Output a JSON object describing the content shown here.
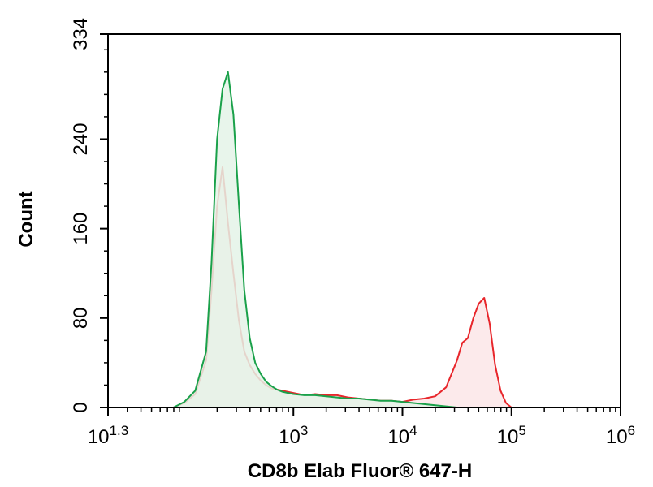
{
  "chart_data": {
    "type": "histogram",
    "xlabel": "CD8b Elab Fluor® 647-H",
    "ylabel": "Count",
    "xscale": "log",
    "xlim": [
      1.3,
      6
    ],
    "ylim": [
      0,
      334
    ],
    "x_ticks": [
      {
        "value": 1.3,
        "base": "10",
        "exp": "1.3"
      },
      {
        "value": 3,
        "base": "10",
        "exp": "3"
      },
      {
        "value": 4,
        "base": "10",
        "exp": "4"
      },
      {
        "value": 5,
        "base": "10",
        "exp": "5"
      },
      {
        "value": 6,
        "base": "10",
        "exp": "6"
      }
    ],
    "y_ticks": [
      0,
      80,
      160,
      240,
      334
    ],
    "grid": false,
    "series": [
      {
        "color": "#e8262b",
        "fill": "#fbe6e8",
        "log10_x": [
          1.9,
          2.0,
          2.1,
          2.2,
          2.25,
          2.3,
          2.35,
          2.4,
          2.45,
          2.5,
          2.55,
          2.6,
          2.65,
          2.7,
          2.75,
          2.8,
          2.85,
          2.9,
          2.95,
          3.0,
          3.1,
          3.2,
          3.3,
          3.4,
          3.5,
          3.6,
          3.7,
          3.8,
          3.9,
          4.0,
          4.1,
          4.2,
          4.3,
          4.4,
          4.5,
          4.55,
          4.6,
          4.65,
          4.7,
          4.75,
          4.8,
          4.85,
          4.9,
          4.95,
          5.0,
          5.05,
          5.1,
          5.15,
          5.2
        ],
        "counts": [
          0,
          4,
          12,
          42,
          105,
          180,
          215,
          165,
          120,
          78,
          50,
          38,
          30,
          24,
          20,
          17,
          16,
          15,
          14,
          13,
          11,
          12,
          11,
          11,
          9,
          8,
          7,
          6,
          6,
          5,
          7,
          8,
          10,
          18,
          42,
          58,
          62,
          80,
          93,
          98,
          75,
          38,
          15,
          4,
          0,
          0,
          0,
          0,
          0
        ]
      },
      {
        "color": "#1aa14a",
        "fill": "#e4f3e7",
        "log10_x": [
          1.9,
          2.0,
          2.1,
          2.2,
          2.25,
          2.3,
          2.35,
          2.4,
          2.45,
          2.5,
          2.55,
          2.6,
          2.65,
          2.7,
          2.75,
          2.8,
          2.85,
          2.9,
          2.95,
          3.0,
          3.1,
          3.2,
          3.3,
          3.4,
          3.5,
          3.6,
          3.7,
          3.8,
          3.9,
          4.0,
          4.1,
          4.2,
          4.3,
          4.4,
          4.5
        ],
        "counts": [
          0,
          5,
          15,
          50,
          130,
          240,
          285,
          300,
          262,
          182,
          105,
          62,
          40,
          30,
          23,
          19,
          16,
          14,
          13,
          12,
          11,
          11,
          10,
          9,
          8,
          8,
          7,
          6,
          6,
          5,
          4,
          3,
          2,
          1,
          0
        ]
      }
    ]
  }
}
